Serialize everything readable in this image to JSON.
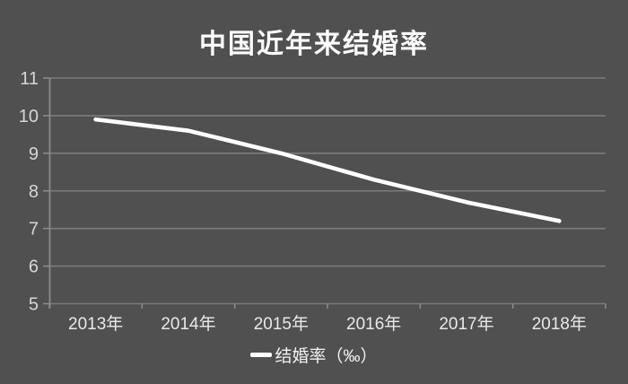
{
  "chart": {
    "title": "中国近年来结婚率",
    "legend_label": "结婚率（‰）"
  },
  "chart_data": {
    "type": "line",
    "title": "中国近年来结婚率",
    "categories": [
      "2013年",
      "2014年",
      "2015年",
      "2016年",
      "2017年",
      "2018年"
    ],
    "series": [
      {
        "name": "结婚率（‰）",
        "values": [
          9.9,
          9.6,
          9.0,
          8.3,
          7.7,
          7.2
        ]
      }
    ],
    "xlabel": "",
    "ylabel": "",
    "ylim": [
      5,
      11
    ],
    "yticks": [
      11,
      10,
      9,
      8,
      7,
      6,
      5
    ],
    "grid": "horizontal",
    "legend_position": "bottom",
    "colors": {
      "background": "#505050",
      "line": "#ffffff",
      "gridline": "#7b7b7b",
      "axis": "#8a8a8a",
      "y_tick_label": "#d6d6d6",
      "x_tick_label": "#e9e9e9",
      "title": "#fdfdfd",
      "legend_text": "#f2f2f2"
    }
  }
}
